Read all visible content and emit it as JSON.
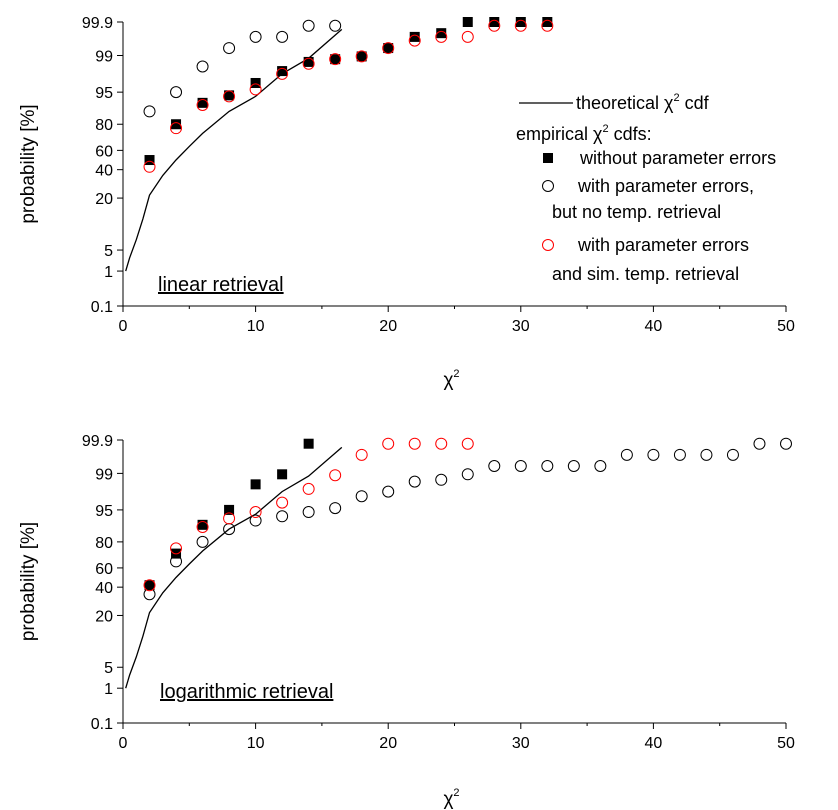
{
  "chart_data": [
    {
      "type": "scatter",
      "panel_label": "linear retrieval",
      "xlabel": "χ",
      "xlabel_sup": "2",
      "ylabel": "probability [%]",
      "xlim": [
        0,
        50
      ],
      "x_ticks": [
        0,
        10,
        20,
        30,
        40,
        50
      ],
      "y_scale": "probability",
      "y_ticks": [
        "0.1",
        "1",
        "5",
        "20",
        "40",
        "60",
        "80",
        "95",
        "99",
        "99.9"
      ],
      "y_tick_values": [
        0.1,
        1,
        5,
        20,
        40,
        60,
        80,
        95,
        99,
        99.9
      ],
      "grid": false,
      "legend": {
        "placement": "right",
        "theoretical_prefix": "theoretical χ",
        "theoretical_suffix": " cdf",
        "empirical_prefix": "empirical χ",
        "empirical_suffix": " cdfs:",
        "sup": "2",
        "entries": [
          {
            "lines": [
              "without parameter errors"
            ]
          },
          {
            "lines": [
              "with parameter errors,",
              "but no temp. retrieval"
            ]
          },
          {
            "lines": [
              "with parameter errors",
              "and sim. temp. retrieval"
            ]
          }
        ]
      },
      "curve": {
        "name": "theoretical χ2 cdf",
        "x": [
          0.2,
          0.5,
          1,
          1.5,
          2,
          3,
          4,
          5,
          6,
          8,
          10,
          12,
          14,
          16.5
        ],
        "y": [
          1,
          3.5,
          8,
          14,
          22,
          36,
          50,
          63,
          73,
          86,
          93,
          97,
          98.7,
          99.7
        ]
      },
      "series": [
        {
          "name": "without parameter errors",
          "marker": "filled-square",
          "color": "#000000",
          "x": [
            2,
            4,
            6,
            8,
            10,
            12,
            14,
            16,
            18,
            20,
            22,
            24,
            26,
            28,
            30,
            32
          ],
          "y": [
            50,
            80,
            90,
            93.5,
            96,
            97.3,
            98.3,
            98.6,
            98.9,
            99.2,
            99.5,
            99.6,
            99.9,
            99.9,
            99.9,
            99.9
          ]
        },
        {
          "name": "with parameter errors, but no temp. retrieval",
          "marker": "open-circle",
          "color": "#000000",
          "x": [
            2,
            4,
            6,
            8,
            10,
            12,
            14,
            16
          ],
          "y": [
            86,
            95,
            97.8,
            99.2,
            99.5,
            99.5,
            99.8,
            99.8
          ]
        },
        {
          "name": "with parameter errors and sim. temp. retrieval",
          "marker": "open-circle",
          "color": "#ff0000",
          "x": [
            2,
            4,
            6,
            8,
            10,
            12,
            14,
            16,
            18,
            20,
            22,
            24,
            26,
            28,
            30,
            32
          ],
          "y": [
            43,
            77,
            89,
            93,
            95.3,
            97,
            98.1,
            98.6,
            98.9,
            99.2,
            99.4,
            99.5,
            99.5,
            99.8,
            99.8,
            99.8
          ]
        }
      ]
    },
    {
      "type": "scatter",
      "panel_label": "logarithmic retrieval",
      "xlabel": "χ",
      "xlabel_sup": "2",
      "ylabel": "probability [%]",
      "xlim": [
        0,
        50
      ],
      "x_ticks": [
        0,
        10,
        20,
        30,
        40,
        50
      ],
      "y_scale": "probability",
      "y_ticks": [
        "0.1",
        "1",
        "5",
        "20",
        "40",
        "60",
        "80",
        "95",
        "99",
        "99.9"
      ],
      "y_tick_values": [
        0.1,
        1,
        5,
        20,
        40,
        60,
        80,
        95,
        99,
        99.9
      ],
      "grid": false,
      "curve": {
        "name": "theoretical χ2 cdf",
        "x": [
          0.2,
          0.5,
          1,
          1.5,
          2,
          3,
          4,
          5,
          6,
          8,
          10,
          12,
          14,
          16.5
        ],
        "y": [
          1,
          3.5,
          8,
          14,
          22,
          36,
          50,
          63,
          73,
          86,
          93,
          97,
          98.7,
          99.7
        ]
      },
      "series": [
        {
          "name": "without parameter errors",
          "marker": "filled-square",
          "color": "#000000",
          "x": [
            2,
            4,
            6,
            8,
            10,
            12,
            14
          ],
          "y": [
            42,
            71,
            88,
            95,
            97.8,
            98.9,
            99.8
          ]
        },
        {
          "name": "with parameter errors, but no temp. retrieval",
          "marker": "open-circle",
          "color": "#000000",
          "x": [
            2,
            4,
            6,
            8,
            10,
            12,
            14,
            16,
            18,
            20,
            22,
            24,
            26,
            28,
            30,
            32,
            34,
            36,
            38,
            40,
            42,
            44,
            46,
            48,
            50
          ],
          "y": [
            35,
            65,
            80,
            86,
            90,
            92,
            94,
            95.2,
            96.5,
            97,
            98.1,
            98.3,
            98.9,
            99.2,
            99.2,
            99.2,
            99.2,
            99.2,
            99.5,
            99.5,
            99.5,
            99.5,
            99.5,
            99.8,
            99.8
          ]
        },
        {
          "name": "with parameter errors and sim. temp. retrieval",
          "marker": "open-circle",
          "color": "#ff0000",
          "x": [
            2,
            4,
            6,
            8,
            10,
            12,
            14,
            16,
            18,
            20,
            22,
            24,
            26
          ],
          "y": [
            42,
            75,
            87,
            91,
            94,
            95.8,
            97.3,
            98.8,
            99.5,
            99.8,
            99.8,
            99.8,
            99.8
          ]
        }
      ]
    }
  ]
}
